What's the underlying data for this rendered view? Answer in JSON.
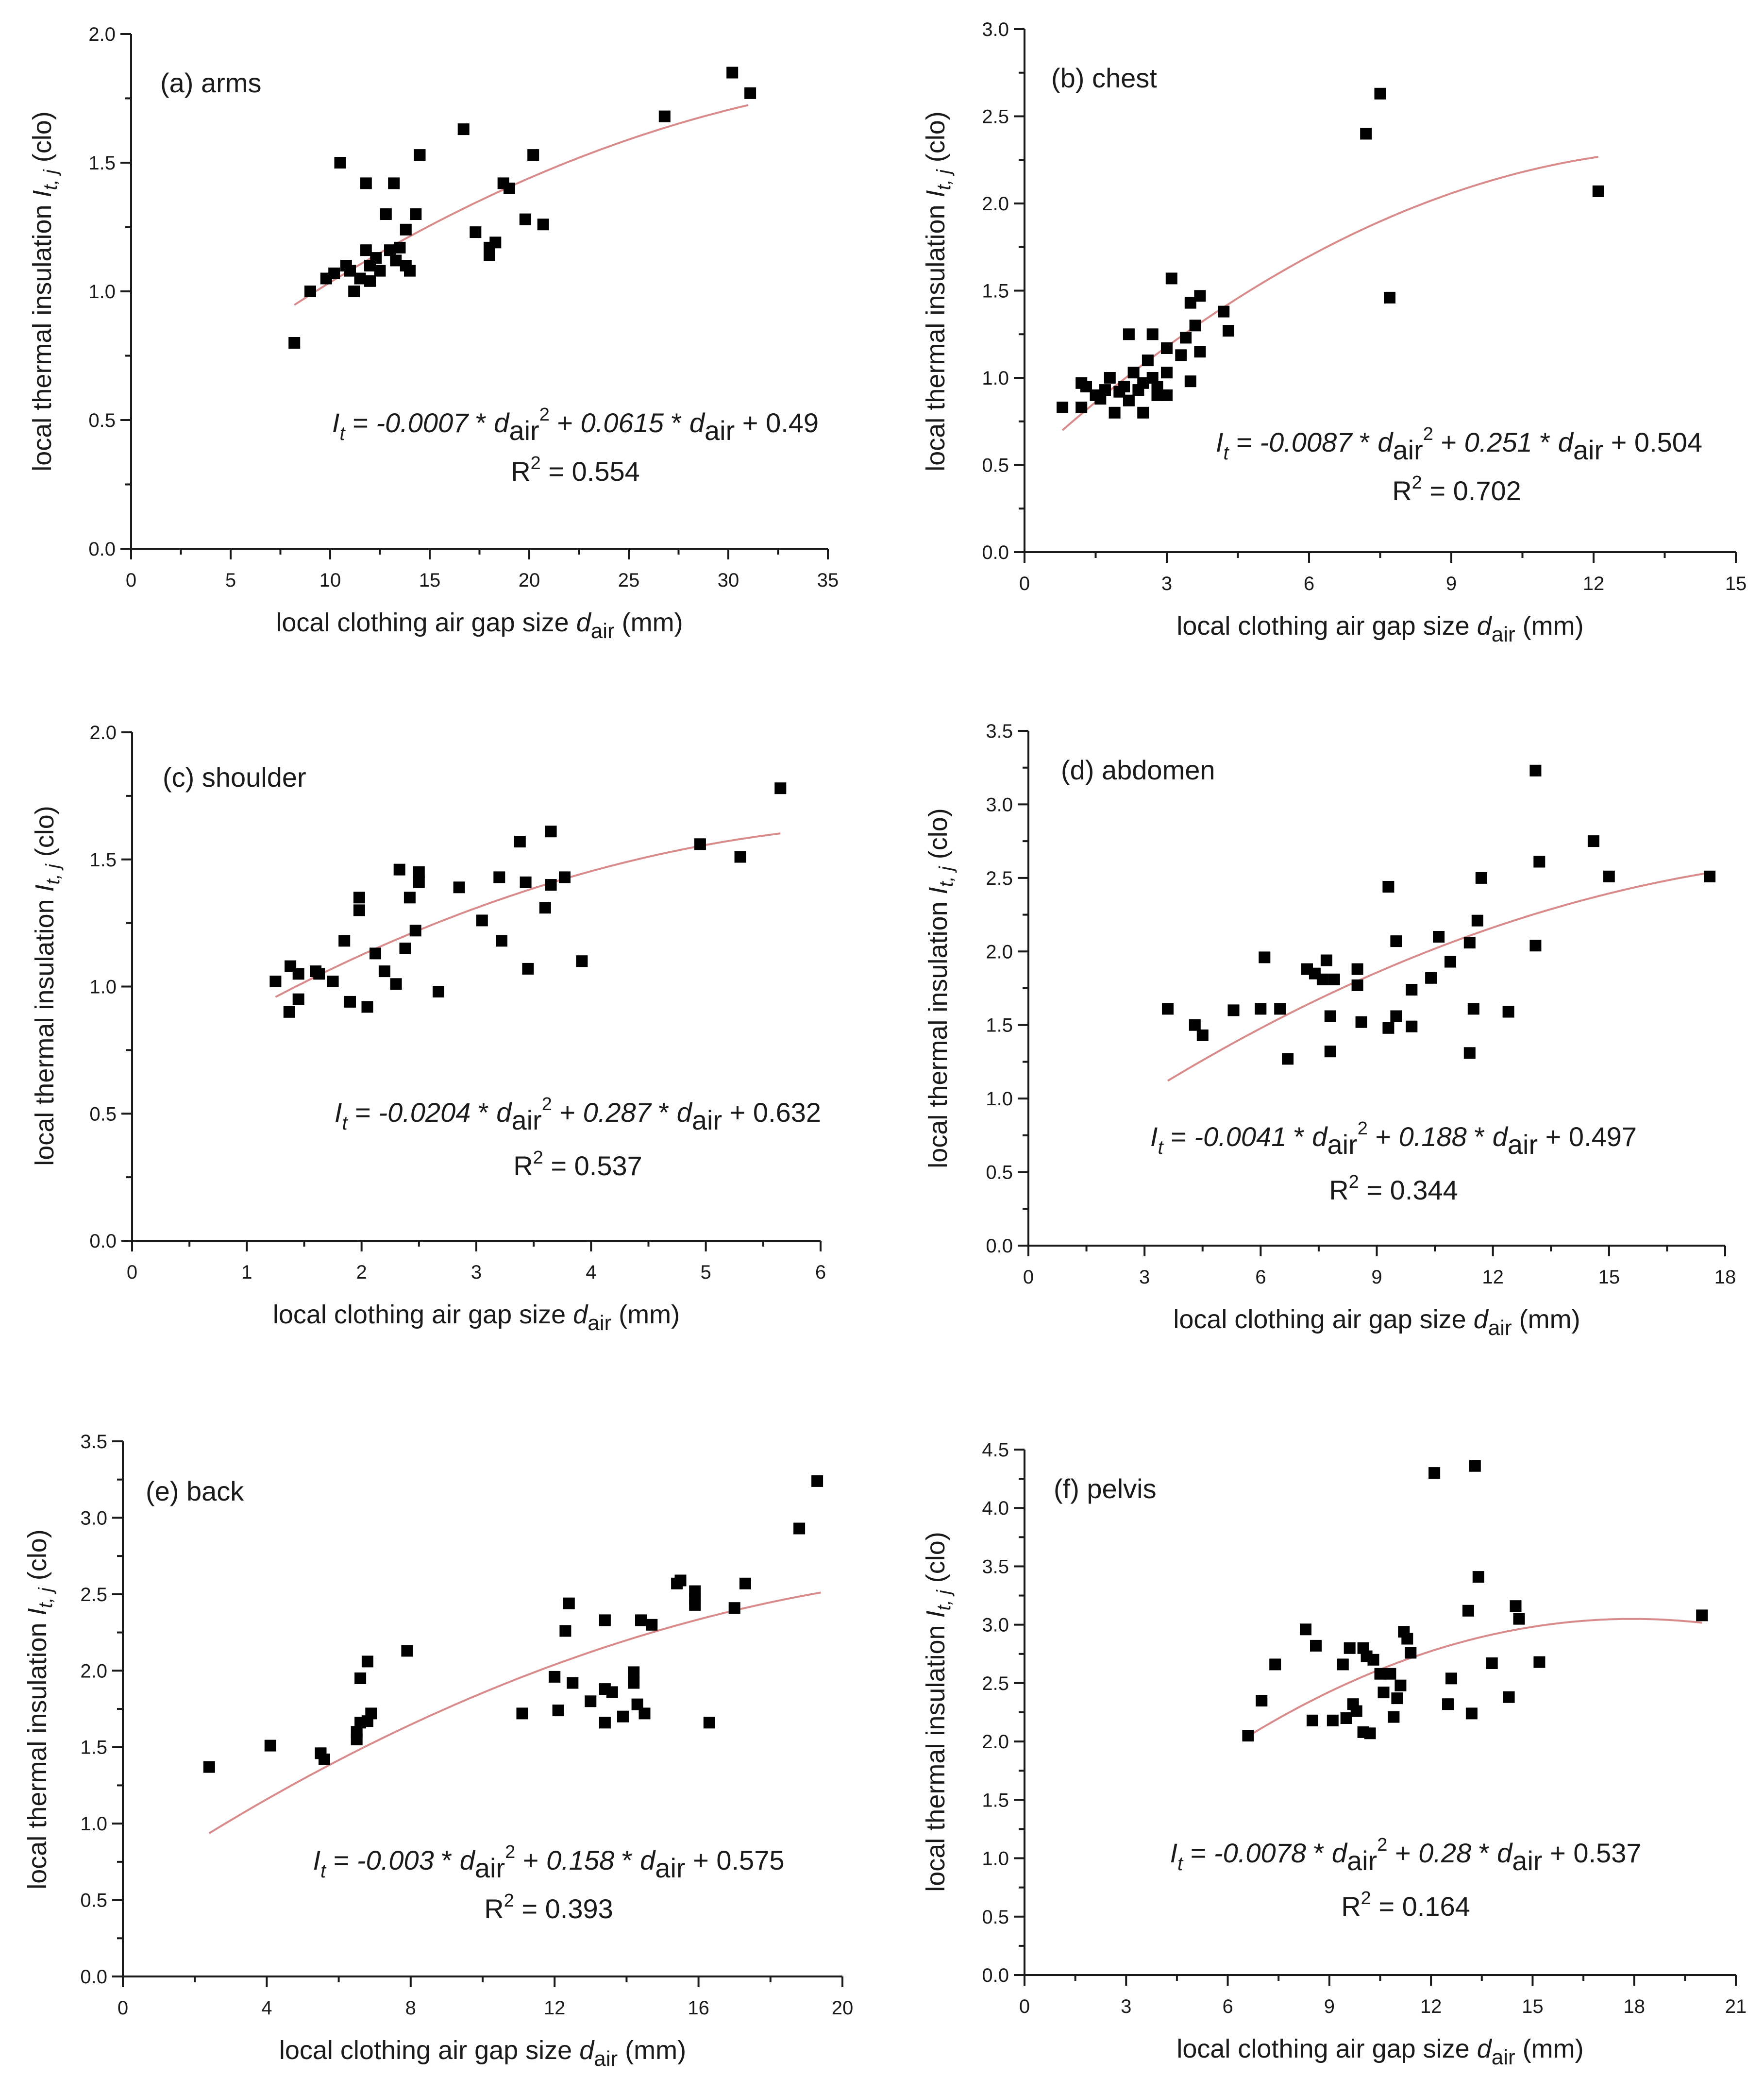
{
  "chart_data": [
    {
      "type": "scatter",
      "title": "(a) arms",
      "xlabel": "local clothing air gap size d_air (mm)",
      "ylabel": "local thermal insulation I_t,j (clo)",
      "xlim": [
        0,
        35
      ],
      "ylim": [
        0,
        2.0
      ],
      "xticks": [
        0,
        5,
        10,
        15,
        20,
        25,
        30,
        35
      ],
      "yticks": [
        0.0,
        0.5,
        1.0,
        1.5,
        2.0
      ],
      "xtick_labels": [
        "0",
        "5",
        "10",
        "15",
        "20",
        "25",
        "30",
        "35"
      ],
      "ytick_labels": [
        "0.0",
        "0.5",
        "1.0",
        "1.5",
        "2.0"
      ],
      "fit": {
        "a": -0.0007,
        "b": 0.0615,
        "c": 0.49,
        "xrange": [
          8.2,
          31
        ]
      },
      "equation": {
        "lhs": "I",
        "lhs_sub": "t",
        "p1": " = ",
        "c2": "-0.0007",
        "p2": " * d",
        "sub": "air",
        "sup": "2",
        "p3": " + ",
        "c1": "0.0615",
        "p4": " * d",
        "sub2": "air",
        "p5": " + 0.49"
      },
      "r2": {
        "pre": "R",
        "sup": "2",
        "post": " = 0.554"
      },
      "points": [
        [
          8.2,
          0.8
        ],
        [
          9.0,
          1.0
        ],
        [
          9.8,
          1.05
        ],
        [
          10.2,
          1.07
        ],
        [
          10.5,
          1.5
        ],
        [
          10.8,
          1.1
        ],
        [
          11.0,
          1.08
        ],
        [
          11.2,
          1.0
        ],
        [
          11.5,
          1.05
        ],
        [
          11.8,
          1.16
        ],
        [
          11.8,
          1.42
        ],
        [
          12.0,
          1.04
        ],
        [
          12.0,
          1.1
        ],
        [
          12.3,
          1.13
        ],
        [
          12.5,
          1.08
        ],
        [
          12.8,
          1.3
        ],
        [
          13.0,
          1.16
        ],
        [
          13.2,
          1.42
        ],
        [
          13.3,
          1.12
        ],
        [
          13.5,
          1.17
        ],
        [
          13.8,
          1.1
        ],
        [
          13.8,
          1.24
        ],
        [
          14.0,
          1.08
        ],
        [
          14.3,
          1.3
        ],
        [
          14.5,
          1.53
        ],
        [
          16.7,
          1.63
        ],
        [
          17.3,
          1.23
        ],
        [
          18.0,
          1.14
        ],
        [
          18.0,
          1.17
        ],
        [
          18.3,
          1.19
        ],
        [
          18.7,
          1.42
        ],
        [
          19.0,
          1.4
        ],
        [
          19.8,
          1.28
        ],
        [
          20.2,
          1.53
        ],
        [
          20.7,
          1.26
        ],
        [
          26.8,
          1.68
        ],
        [
          30.2,
          1.85
        ],
        [
          31.1,
          1.77
        ]
      ]
    },
    {
      "type": "scatter",
      "title": "(b) chest",
      "xlabel": "local clothing air gap size d_air (mm)",
      "ylabel": "local thermal insulation I_t,j (clo)",
      "xlim": [
        0,
        15
      ],
      "ylim": [
        0,
        3.0
      ],
      "xticks": [
        0,
        3,
        6,
        9,
        12,
        15
      ],
      "yticks": [
        0.0,
        0.5,
        1.0,
        1.5,
        2.0,
        2.5,
        3.0
      ],
      "xtick_labels": [
        "0",
        "3",
        "6",
        "9",
        "12",
        "15"
      ],
      "ytick_labels": [
        "0.0",
        "0.5",
        "1.0",
        "1.5",
        "2.0",
        "2.5",
        "3.0"
      ],
      "fit": {
        "a": -0.0087,
        "b": 0.251,
        "c": 0.504,
        "xrange": [
          0.8,
          12.1
        ]
      },
      "equation": {
        "lhs": "I",
        "lhs_sub": "t",
        "p1": " = ",
        "c2": "-0.0087",
        "p2": " * d",
        "sub": "air",
        "sup": "2",
        "p3": " + ",
        "c1": "0.251",
        "p4": " * d",
        "sub2": "air",
        "p5": " + 0.504"
      },
      "r2": {
        "pre": "R",
        "sup": "2",
        "post": " = 0.702"
      },
      "points": [
        [
          0.8,
          0.83
        ],
        [
          1.2,
          0.83
        ],
        [
          1.2,
          0.97
        ],
        [
          1.3,
          0.95
        ],
        [
          1.5,
          0.9
        ],
        [
          1.6,
          0.88
        ],
        [
          1.7,
          0.93
        ],
        [
          1.8,
          1.0
        ],
        [
          1.9,
          0.8
        ],
        [
          2.0,
          0.92
        ],
        [
          2.1,
          0.95
        ],
        [
          2.2,
          0.87
        ],
        [
          2.2,
          1.25
        ],
        [
          2.3,
          1.03
        ],
        [
          2.4,
          0.93
        ],
        [
          2.5,
          0.8
        ],
        [
          2.5,
          0.97
        ],
        [
          2.6,
          1.1
        ],
        [
          2.7,
          1.0
        ],
        [
          2.7,
          1.25
        ],
        [
          2.8,
          0.9
        ],
        [
          2.8,
          0.95
        ],
        [
          3.0,
          0.9
        ],
        [
          3.0,
          1.03
        ],
        [
          3.0,
          1.17
        ],
        [
          3.1,
          1.57
        ],
        [
          3.3,
          1.13
        ],
        [
          3.4,
          1.23
        ],
        [
          3.5,
          0.98
        ],
        [
          3.5,
          1.43
        ],
        [
          3.6,
          1.3
        ],
        [
          3.7,
          1.47
        ],
        [
          3.7,
          1.15
        ],
        [
          4.2,
          1.38
        ],
        [
          4.3,
          1.27
        ],
        [
          7.2,
          2.4
        ],
        [
          7.5,
          2.63
        ],
        [
          7.7,
          1.46
        ],
        [
          12.1,
          2.07
        ]
      ]
    },
    {
      "type": "scatter",
      "title": "(c) shoulder",
      "xlabel": "local clothing air gap size d_air (mm)",
      "ylabel": "local thermal insulation I_t,j (clo)",
      "xlim": [
        0,
        6
      ],
      "ylim": [
        0,
        2.0
      ],
      "xticks": [
        0,
        1,
        2,
        3,
        4,
        5,
        6
      ],
      "yticks": [
        0.0,
        0.5,
        1.0,
        1.5,
        2.0
      ],
      "xtick_labels": [
        "0",
        "1",
        "2",
        "3",
        "4",
        "5",
        "6"
      ],
      "ytick_labels": [
        "0.0",
        "0.5",
        "1.0",
        "1.5",
        "2.0"
      ],
      "fit": {
        "a": -0.0204,
        "b": 0.287,
        "c": 0.632,
        "xrange": [
          1.25,
          5.65
        ]
      },
      "equation": {
        "lhs": "I",
        "lhs_sub": "t",
        "p1": " = ",
        "c2": "-0.0204",
        "p2": " * d",
        "sub": "air",
        "sup": "2",
        "p3": " + ",
        "c1": "0.287",
        "p4": " * d",
        "sub2": "air",
        "p5": " + 0.632"
      },
      "r2": {
        "pre": "R",
        "sup": "2",
        "post": " = 0.537"
      },
      "points": [
        [
          1.25,
          1.02
        ],
        [
          1.37,
          0.9
        ],
        [
          1.38,
          1.08
        ],
        [
          1.45,
          0.95
        ],
        [
          1.45,
          1.05
        ],
        [
          1.6,
          1.06
        ],
        [
          1.63,
          1.05
        ],
        [
          1.75,
          1.02
        ],
        [
          1.85,
          1.18
        ],
        [
          1.9,
          0.94
        ],
        [
          1.98,
          1.3
        ],
        [
          1.98,
          1.35
        ],
        [
          2.05,
          0.92
        ],
        [
          2.12,
          1.13
        ],
        [
          2.2,
          1.06
        ],
        [
          2.3,
          1.01
        ],
        [
          2.33,
          1.46
        ],
        [
          2.38,
          1.15
        ],
        [
          2.42,
          1.35
        ],
        [
          2.47,
          1.22
        ],
        [
          2.5,
          1.45
        ],
        [
          2.5,
          1.41
        ],
        [
          2.67,
          0.98
        ],
        [
          2.85,
          1.39
        ],
        [
          3.05,
          1.26
        ],
        [
          3.2,
          1.43
        ],
        [
          3.22,
          1.18
        ],
        [
          3.38,
          1.57
        ],
        [
          3.43,
          1.41
        ],
        [
          3.45,
          1.07
        ],
        [
          3.6,
          1.31
        ],
        [
          3.65,
          1.61
        ],
        [
          3.65,
          1.4
        ],
        [
          3.77,
          1.43
        ],
        [
          3.92,
          1.1
        ],
        [
          4.95,
          1.56
        ],
        [
          5.3,
          1.51
        ],
        [
          5.65,
          1.78
        ]
      ]
    },
    {
      "type": "scatter",
      "title": "(d) abdomen",
      "xlabel": "local clothing air gap size d_air (mm)",
      "ylabel": "local thermal insulation I_t,j (clo)",
      "xlim": [
        0,
        18
      ],
      "ylim": [
        0,
        3.5
      ],
      "xticks": [
        0,
        3,
        6,
        9,
        12,
        15,
        18
      ],
      "yticks": [
        0.0,
        0.5,
        1.0,
        1.5,
        2.0,
        2.5,
        3.0,
        3.5
      ],
      "xtick_labels": [
        "0",
        "3",
        "6",
        "9",
        "12",
        "15",
        "18"
      ],
      "ytick_labels": [
        "0.0",
        "0.5",
        "1.0",
        "1.5",
        "2.0",
        "2.5",
        "3.0",
        "3.5"
      ],
      "fit": {
        "a": -0.0041,
        "b": 0.188,
        "c": 0.497,
        "xrange": [
          3.6,
          17.6
        ]
      },
      "equation": {
        "lhs": "I",
        "lhs_sub": "t",
        "p1": " = ",
        "c2": "-0.0041",
        "p2": " * d",
        "sub": "air",
        "sup": "2",
        "p3": " + ",
        "c1": "0.188",
        "p4": " * d",
        "sub2": "air",
        "p5": " + 0.497"
      },
      "r2": {
        "pre": "R",
        "sup": "2",
        "post": " = 0.344"
      },
      "points": [
        [
          3.6,
          1.61
        ],
        [
          4.3,
          1.5
        ],
        [
          4.5,
          1.43
        ],
        [
          5.3,
          1.6
        ],
        [
          6.0,
          1.61
        ],
        [
          6.1,
          1.96
        ],
        [
          6.5,
          1.61
        ],
        [
          6.7,
          1.27
        ],
        [
          7.2,
          1.88
        ],
        [
          7.4,
          1.85
        ],
        [
          7.6,
          1.81
        ],
        [
          7.7,
          1.94
        ],
        [
          7.8,
          1.56
        ],
        [
          7.8,
          1.32
        ],
        [
          7.9,
          1.81
        ],
        [
          8.5,
          1.88
        ],
        [
          8.5,
          1.77
        ],
        [
          8.6,
          1.52
        ],
        [
          9.3,
          2.44
        ],
        [
          9.3,
          1.48
        ],
        [
          9.5,
          2.07
        ],
        [
          9.5,
          1.56
        ],
        [
          9.9,
          1.74
        ],
        [
          9.9,
          1.49
        ],
        [
          10.4,
          1.82
        ],
        [
          10.6,
          2.1
        ],
        [
          10.9,
          1.93
        ],
        [
          11.4,
          2.06
        ],
        [
          11.4,
          1.31
        ],
        [
          11.5,
          1.61
        ],
        [
          11.6,
          2.21
        ],
        [
          11.7,
          2.5
        ],
        [
          12.4,
          1.59
        ],
        [
          13.1,
          2.04
        ],
        [
          13.1,
          3.23
        ],
        [
          13.2,
          2.61
        ],
        [
          14.6,
          2.75
        ],
        [
          15.0,
          2.51
        ],
        [
          17.6,
          2.51
        ]
      ]
    },
    {
      "type": "scatter",
      "title": "(e) back",
      "xlabel": "local clothing air gap size d_air (mm)",
      "ylabel": "local thermal insulation I_t,j (clo)",
      "xlim": [
        0,
        20
      ],
      "ylim": [
        0,
        3.5
      ],
      "xticks": [
        0,
        4,
        8,
        12,
        16,
        20
      ],
      "yticks": [
        0.0,
        0.5,
        1.0,
        1.5,
        2.0,
        2.5,
        3.0,
        3.5
      ],
      "xtick_labels": [
        "0",
        "4",
        "8",
        "12",
        "16",
        "20"
      ],
      "ytick_labels": [
        "0.0",
        "0.5",
        "1.0",
        "1.5",
        "2.0",
        "2.5",
        "3.0",
        "3.5"
      ],
      "fit": {
        "a": -0.003,
        "b": 0.158,
        "c": 0.575,
        "xrange": [
          2.4,
          19.4
        ]
      },
      "equation": {
        "lhs": "I",
        "lhs_sub": "t",
        "p1": " = ",
        "c2": "-0.003",
        "p2": " * d",
        "sub": "air",
        "sup": "2",
        "p3": " + ",
        "c1": "0.158",
        "p4": " * d",
        "sub2": "air",
        "p5": " + 0.575"
      },
      "r2": {
        "pre": "R",
        "sup": "2",
        "post": " = 0.393"
      },
      "points": [
        [
          2.4,
          1.37
        ],
        [
          4.1,
          1.51
        ],
        [
          5.5,
          1.46
        ],
        [
          5.6,
          1.42
        ],
        [
          6.5,
          1.55
        ],
        [
          6.5,
          1.6
        ],
        [
          6.6,
          1.95
        ],
        [
          6.6,
          1.66
        ],
        [
          6.8,
          2.06
        ],
        [
          6.8,
          1.67
        ],
        [
          6.9,
          1.72
        ],
        [
          7.9,
          2.13
        ],
        [
          11.1,
          1.72
        ],
        [
          12.0,
          1.96
        ],
        [
          12.1,
          1.74
        ],
        [
          12.3,
          2.26
        ],
        [
          12.4,
          2.44
        ],
        [
          12.5,
          1.92
        ],
        [
          13.0,
          1.8
        ],
        [
          13.4,
          1.88
        ],
        [
          13.4,
          2.33
        ],
        [
          13.4,
          1.66
        ],
        [
          13.6,
          1.86
        ],
        [
          13.9,
          1.7
        ],
        [
          14.2,
          1.99
        ],
        [
          14.2,
          1.92
        ],
        [
          14.3,
          1.78
        ],
        [
          14.4,
          2.33
        ],
        [
          14.5,
          1.72
        ],
        [
          14.7,
          2.3
        ],
        [
          15.4,
          2.57
        ],
        [
          15.5,
          2.59
        ],
        [
          15.9,
          2.52
        ],
        [
          15.9,
          2.47
        ],
        [
          15.9,
          2.43
        ],
        [
          16.3,
          1.66
        ],
        [
          17.0,
          2.41
        ],
        [
          17.3,
          2.57
        ],
        [
          18.8,
          2.93
        ],
        [
          19.3,
          3.24
        ]
      ]
    },
    {
      "type": "scatter",
      "title": "(f) pelvis",
      "xlabel": "local clothing air gap size d_air (mm)",
      "ylabel": "local thermal insulation I_t,j (clo)",
      "xlim": [
        0,
        21
      ],
      "ylim": [
        0,
        4.5
      ],
      "xticks": [
        0,
        3,
        6,
        9,
        12,
        15,
        18,
        21
      ],
      "yticks": [
        0.0,
        0.5,
        1.0,
        1.5,
        2.0,
        2.5,
        3.0,
        3.5,
        4.0,
        4.5
      ],
      "xtick_labels": [
        "0",
        "3",
        "6",
        "9",
        "12",
        "15",
        "18",
        "21"
      ],
      "ytick_labels": [
        "0.0",
        "0.5",
        "1.0",
        "1.5",
        "2.0",
        "2.5",
        "3.0",
        "3.5",
        "4.0",
        "4.5"
      ],
      "fit": {
        "a": -0.0078,
        "b": 0.28,
        "c": 0.537,
        "xrange": [
          6.6,
          20.0
        ]
      },
      "equation": {
        "lhs": "I",
        "lhs_sub": "t",
        "p1": " = ",
        "c2": "-0.0078",
        "p2": " * d",
        "sub": "air",
        "sup": "2",
        "p3": " + ",
        "c1": "0.28",
        "p4": " * d",
        "sub2": "air",
        "p5": " + 0.537"
      },
      "r2": {
        "pre": "R",
        "sup": "2",
        "post": " = 0.164"
      },
      "points": [
        [
          6.6,
          2.05
        ],
        [
          7.0,
          2.35
        ],
        [
          7.4,
          2.66
        ],
        [
          8.3,
          2.96
        ],
        [
          8.5,
          2.18
        ],
        [
          8.6,
          2.82
        ],
        [
          9.1,
          2.18
        ],
        [
          9.4,
          2.66
        ],
        [
          9.5,
          2.2
        ],
        [
          9.6,
          2.8
        ],
        [
          9.7,
          2.32
        ],
        [
          9.8,
          2.26
        ],
        [
          10.0,
          2.08
        ],
        [
          10.0,
          2.8
        ],
        [
          10.1,
          2.73
        ],
        [
          10.2,
          2.07
        ],
        [
          10.3,
          2.7
        ],
        [
          10.5,
          2.58
        ],
        [
          10.6,
          2.42
        ],
        [
          10.8,
          2.58
        ],
        [
          10.9,
          2.21
        ],
        [
          11.0,
          2.37
        ],
        [
          11.1,
          2.48
        ],
        [
          11.2,
          2.94
        ],
        [
          11.3,
          2.88
        ],
        [
          11.4,
          2.76
        ],
        [
          12.1,
          4.3
        ],
        [
          12.5,
          2.32
        ],
        [
          12.6,
          2.54
        ],
        [
          13.1,
          3.12
        ],
        [
          13.2,
          2.24
        ],
        [
          13.3,
          4.36
        ],
        [
          13.4,
          3.41
        ],
        [
          13.8,
          2.67
        ],
        [
          14.3,
          2.38
        ],
        [
          14.5,
          3.16
        ],
        [
          14.6,
          3.05
        ],
        [
          15.2,
          2.68
        ],
        [
          20.0,
          3.08
        ]
      ]
    }
  ]
}
